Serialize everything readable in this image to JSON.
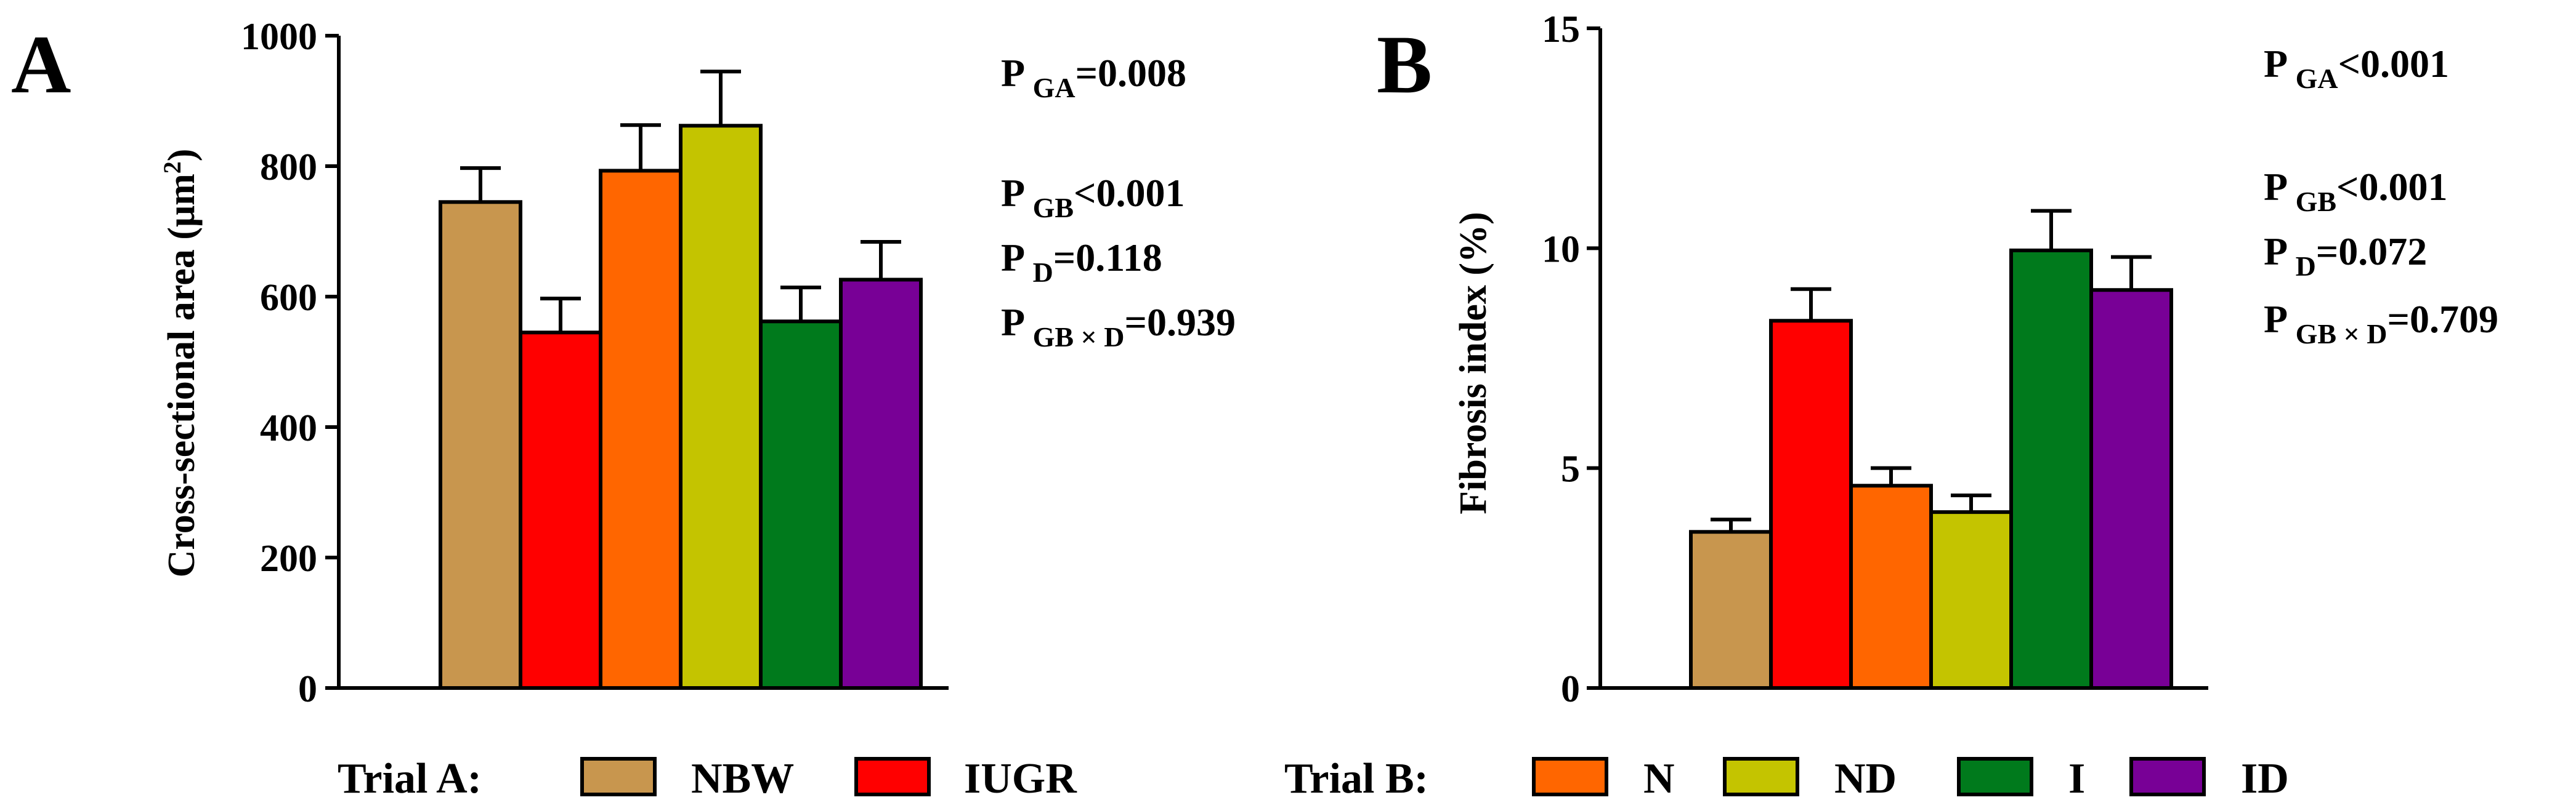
{
  "chart_data": [
    {
      "type": "bar",
      "panel_label": "A",
      "ylabel": "Cross-sectional area (μm²)",
      "ylabel_main": "Cross-sectional area (μm",
      "ylabel_sup": "2",
      "ylabel_close": ")",
      "xlabel": "",
      "ylim": [
        0,
        1000
      ],
      "yticks": [
        "0",
        "200",
        "400",
        "600",
        "800",
        "1000"
      ],
      "categories": [
        "NBW",
        "IUGR",
        "N",
        "ND",
        "I",
        "ID"
      ],
      "values": [
        745,
        545,
        793,
        862,
        562,
        626
      ],
      "errors": [
        52,
        52,
        70,
        83,
        52,
        58
      ],
      "colors": [
        "#C8964E",
        "#FF0000",
        "#FF6600",
        "#C4C400",
        "#007A1C",
        "#780096"
      ],
      "pvalues": [
        {
          "p": "P",
          "sub": "GA",
          "val": "=0.008"
        },
        {
          "p": "P",
          "sub": "GB",
          "val": "<0.001"
        },
        {
          "p": "P",
          "sub": "D",
          "val": "=0.118"
        },
        {
          "p": "P",
          "sub": "GB × D",
          "val": "=0.939"
        }
      ]
    },
    {
      "type": "bar",
      "panel_label": "B",
      "ylabel": "Fibrosis index (%)",
      "xlabel": "",
      "ylim": [
        0,
        15
      ],
      "yticks": [
        "0",
        "5",
        "10",
        "15"
      ],
      "categories": [
        "NBW",
        "IUGR",
        "N",
        "ND",
        "I",
        "ID"
      ],
      "values": [
        3.55,
        8.35,
        4.6,
        4.0,
        9.95,
        9.05
      ],
      "errors": [
        0.28,
        0.72,
        0.4,
        0.38,
        0.9,
        0.75
      ],
      "colors": [
        "#C8964E",
        "#FF0000",
        "#FF6600",
        "#C4C400",
        "#007A1C",
        "#780096"
      ],
      "pvalues": [
        {
          "p": "P",
          "sub": "GA",
          "val": "<0.001"
        },
        {
          "p": "P",
          "sub": "GB",
          "val": "<0.001"
        },
        {
          "p": "P",
          "sub": "D",
          "val": "=0.072"
        },
        {
          "p": "P",
          "sub": "GB × D",
          "val": "=0.709"
        }
      ]
    }
  ],
  "legend": {
    "trial_a_label": "Trial A:",
    "trial_b_label": "Trial B:",
    "items": [
      {
        "label": "NBW",
        "color": "#C8964E"
      },
      {
        "label": "IUGR",
        "color": "#FF0000"
      },
      {
        "label": "N",
        "color": "#FF6600"
      },
      {
        "label": "ND",
        "color": "#C4C400"
      },
      {
        "label": "I",
        "color": "#007A1C"
      },
      {
        "label": "ID",
        "color": "#780096"
      }
    ]
  }
}
